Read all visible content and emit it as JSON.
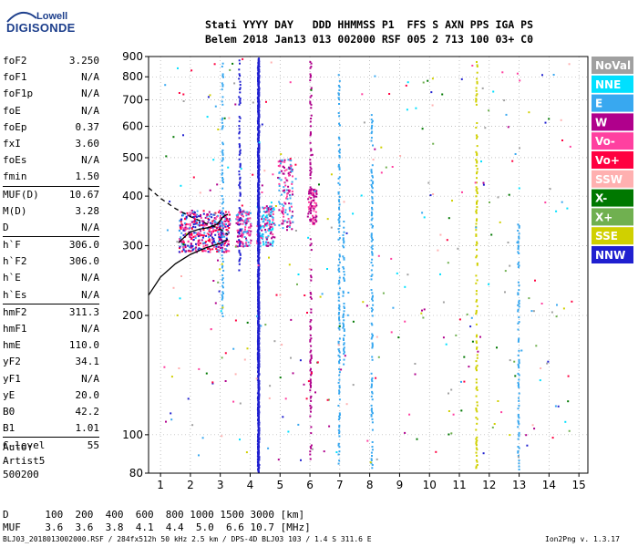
{
  "logo": {
    "top": "Lowell",
    "main": "DIGISONDE"
  },
  "header": {
    "line1": "Stati YYYY DAY   DDD HHMMSS P1  FFS S AXN PPS IGA PS",
    "line2": "Belem 2018 Jan13 013 002000 RSF 005 2 713 100 03+ C0"
  },
  "params": [
    {
      "key": "foF2",
      "value": "3.250"
    },
    {
      "key": "foF1",
      "value": "N/A"
    },
    {
      "key": "foF1p",
      "value": "N/A"
    },
    {
      "key": "foE",
      "value": "N/A"
    },
    {
      "key": "foEp",
      "value": "0.37"
    },
    {
      "key": "fxI",
      "value": "3.60"
    },
    {
      "key": "foEs",
      "value": "N/A"
    },
    {
      "key": "fmin",
      "value": "1.50"
    },
    {
      "key": "MUF(D)",
      "value": "10.67",
      "sep": true
    },
    {
      "key": "M(D)",
      "value": "3.28"
    },
    {
      "key": "D",
      "value": "N/A"
    },
    {
      "key": "h`F",
      "value": "306.0",
      "sep": true
    },
    {
      "key": "h`F2",
      "value": "306.0"
    },
    {
      "key": "h`E",
      "value": "N/A"
    },
    {
      "key": "h`Es",
      "value": "N/A"
    },
    {
      "key": "hmF2",
      "value": "311.3",
      "sep": true
    },
    {
      "key": "hmF1",
      "value": "N/A"
    },
    {
      "key": "hmE",
      "value": "110.0"
    },
    {
      "key": "yF2",
      "value": "34.1"
    },
    {
      "key": "yF1",
      "value": "N/A"
    },
    {
      "key": "yE",
      "value": "20.0"
    },
    {
      "key": "B0",
      "value": "42.2"
    },
    {
      "key": "B1",
      "value": "1.01"
    },
    {
      "key": "C-level",
      "value": "55",
      "sep": true
    }
  ],
  "autoscaling": {
    "line1": "Auto:",
    "line2": "Artist5",
    "line3": "500200"
  },
  "footer": {
    "d_line": "D      100  200  400  600  800 1000 1500 3000 [km]",
    "muf_line": "MUF    3.6  3.6  3.8  4.1  4.4  5.0  6.6 10.7 [MHz]",
    "file_info": "BLJ03_2018013002000.RSF / 284fx512h 50 kHz 2.5 km / DPS-4D BLJ03 103 / 1.4 S 311.6 E",
    "version": "Ion2Png v. 1.3.17"
  },
  "legend": [
    {
      "label": "NoVal",
      "color": "#a0a0a0"
    },
    {
      "label": "NNE",
      "color": "#00e0ff"
    },
    {
      "label": "E",
      "color": "#38a8f0"
    },
    {
      "label": "W",
      "color": "#b0008c"
    },
    {
      "label": "Vo-",
      "color": "#ff40a0"
    },
    {
      "label": "Vo+",
      "color": "#ff0040"
    },
    {
      "label": "SSW",
      "color": "#ffb0b0"
    },
    {
      "label": "X-",
      "color": "#007800"
    },
    {
      "label": "X+",
      "color": "#70b050"
    },
    {
      "label": "SSE",
      "color": "#d0d000"
    },
    {
      "label": "NNW",
      "color": "#2020d0"
    }
  ],
  "chart_data": {
    "type": "scatter",
    "xlabel": "",
    "ylabel": "",
    "xlim": [
      0.6,
      15.3
    ],
    "ylim": [
      80,
      900
    ],
    "y_scale": "log",
    "x_ticks": [
      1,
      2,
      3,
      4,
      5,
      6,
      7,
      8,
      9,
      10,
      11,
      12,
      13,
      14,
      15
    ],
    "y_ticks": [
      80,
      100,
      200,
      300,
      400,
      500,
      600,
      700,
      800,
      900
    ],
    "grid": "dotted",
    "trace_clusters": [
      {
        "f_range": [
          1.6,
          3.3
        ],
        "h_range": [
          290,
          370
        ],
        "colors": [
          "NNW",
          "E",
          "Vo-",
          "W",
          "Vo+"
        ]
      },
      {
        "f_range": [
          3.5,
          4.0
        ],
        "h_range": [
          300,
          370
        ],
        "colors": [
          "Vo-",
          "E",
          "W"
        ]
      },
      {
        "f_range": [
          4.2,
          4.8
        ],
        "h_range": [
          300,
          380
        ],
        "colors": [
          "E",
          "Vo-",
          "W",
          "NNE"
        ]
      },
      {
        "f_range": [
          4.9,
          5.4
        ],
        "h_range": [
          330,
          500
        ],
        "colors": [
          "Vo-",
          "E",
          "W"
        ]
      },
      {
        "f_range": [
          5.9,
          6.2
        ],
        "h_range": [
          340,
          420
        ],
        "colors": [
          "Vo-",
          "W"
        ]
      }
    ],
    "vertical_strip_frequencies": [
      {
        "f": 4.25,
        "color": "NNW",
        "h_range": [
          80,
          900
        ]
      },
      {
        "f": 3.05,
        "color": "E",
        "h_range": [
          200,
          900
        ]
      },
      {
        "f": 3.62,
        "color": "NNW",
        "h_range": [
          250,
          900
        ]
      },
      {
        "f": 6.0,
        "color": "W",
        "h_range": [
          85,
          900
        ]
      },
      {
        "f": 6.95,
        "color": "E",
        "h_range": [
          85,
          820
        ]
      },
      {
        "f": 7.1,
        "color": "E",
        "h_range": [
          150,
          350
        ]
      },
      {
        "f": 8.05,
        "color": "E",
        "h_range": [
          80,
          650
        ]
      },
      {
        "f": 11.55,
        "color": "SSE",
        "h_range": [
          80,
          900
        ]
      },
      {
        "f": 12.95,
        "color": "E",
        "h_range": [
          80,
          350
        ]
      }
    ],
    "profile_curve": [
      [
        0.6,
        225
      ],
      [
        1.0,
        250
      ],
      [
        1.5,
        270
      ],
      [
        2.0,
        285
      ],
      [
        2.5,
        296
      ],
      [
        3.0,
        304
      ],
      [
        3.25,
        311
      ]
    ],
    "profile_dashed": [
      [
        0.6,
        420
      ],
      [
        1.0,
        395
      ],
      [
        1.5,
        372
      ],
      [
        2.0,
        355
      ],
      [
        2.5,
        342
      ],
      [
        3.0,
        330
      ],
      [
        3.25,
        320
      ]
    ],
    "trace_fit": [
      [
        1.6,
        305
      ],
      [
        1.8,
        315
      ],
      [
        2.0,
        325
      ],
      [
        2.3,
        330
      ],
      [
        2.6,
        333
      ],
      [
        2.9,
        340
      ],
      [
        3.1,
        355
      ],
      [
        3.25,
        360
      ]
    ]
  }
}
